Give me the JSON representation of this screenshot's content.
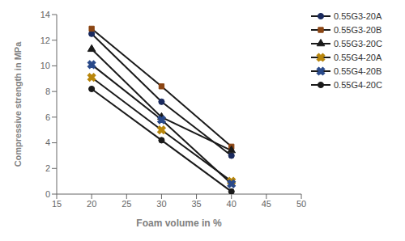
{
  "chart_data": {
    "type": "line",
    "xlabel": "Foam volume in %",
    "ylabel": "Compressive strength in MPa",
    "x": [
      20,
      30,
      40
    ],
    "color": "#1a1a1a",
    "series": [
      {
        "name": "0.55G3-20A",
        "values": [
          12.5,
          7.2,
          3.0
        ],
        "marker": "circle",
        "color": "#1a2a5e"
      },
      {
        "name": "0.55G3-20B",
        "values": [
          12.9,
          8.4,
          3.7
        ],
        "marker": "square",
        "color": "#8B4513"
      },
      {
        "name": "0.55G3-20C",
        "values": [
          11.3,
          6.0,
          3.4
        ],
        "marker": "triangle",
        "color": "#1a1a1a"
      },
      {
        "name": "0.55G4-20A",
        "values": [
          9.1,
          5.0,
          1.0
        ],
        "marker": "x",
        "color": "#B8860B"
      },
      {
        "name": "0.55G4-20B",
        "values": [
          10.1,
          5.8,
          0.8
        ],
        "marker": "x",
        "color": "#2a4a8a"
      },
      {
        "name": "0.55G4-20C",
        "values": [
          8.2,
          4.2,
          0.2
        ],
        "marker": "circle",
        "color": "#1a1a1a"
      }
    ],
    "xlim": [
      15,
      50
    ],
    "ylim": [
      0,
      14
    ],
    "xticks": [
      15,
      20,
      25,
      30,
      35,
      40,
      45,
      50
    ],
    "yticks": [
      0,
      2,
      4,
      6,
      8,
      10,
      12,
      14
    ],
    "grid": false,
    "legend": "right"
  }
}
